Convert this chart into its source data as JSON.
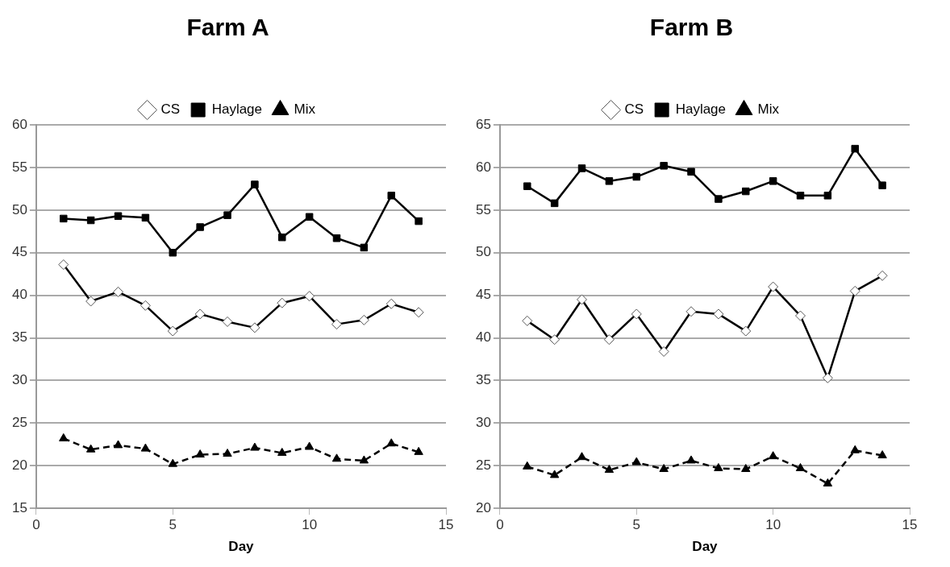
{
  "chart_data": [
    {
      "type": "line",
      "title": "Farm A",
      "xlabel": "Day",
      "x": [
        1,
        2,
        3,
        4,
        5,
        6,
        7,
        8,
        9,
        10,
        11,
        12,
        13,
        14
      ],
      "xlim": [
        0,
        15
      ],
      "xticks": [
        0,
        5,
        10,
        15
      ],
      "ylim": [
        15,
        60
      ],
      "yticks": [
        15,
        20,
        25,
        30,
        35,
        40,
        45,
        50,
        55,
        60
      ],
      "grid": "y",
      "legend": "top",
      "series": [
        {
          "name": "CS",
          "color": "#000000",
          "marker": "diamond",
          "line_style": "solid",
          "values": [
            43.6,
            39.3,
            40.4,
            38.8,
            35.8,
            37.8,
            36.9,
            36.2,
            39.1,
            39.9,
            36.6,
            37.1,
            39.0,
            38.0
          ]
        },
        {
          "name": "Haylage",
          "color": "#000000",
          "marker": "square",
          "line_style": "solid",
          "values": [
            49.0,
            48.8,
            49.3,
            49.1,
            45.0,
            48.0,
            49.4,
            53.0,
            46.8,
            49.2,
            46.7,
            45.6,
            51.7,
            48.7
          ]
        },
        {
          "name": "Mix",
          "color": "#000000",
          "marker": "triangle",
          "line_style": "dashed",
          "values": [
            23.2,
            21.9,
            22.4,
            22.0,
            20.2,
            21.3,
            21.4,
            22.1,
            21.5,
            22.2,
            20.8,
            20.6,
            22.6,
            21.6
          ]
        }
      ]
    },
    {
      "type": "line",
      "title": "Farm B",
      "xlabel": "Day",
      "x": [
        1,
        2,
        3,
        4,
        5,
        6,
        7,
        8,
        9,
        10,
        11,
        12,
        13,
        14
      ],
      "xlim": [
        0,
        15
      ],
      "xticks": [
        0,
        5,
        10,
        15
      ],
      "ylim": [
        20,
        65
      ],
      "yticks": [
        20,
        25,
        30,
        35,
        40,
        45,
        50,
        55,
        60,
        65
      ],
      "grid": "y",
      "legend": "top",
      "series": [
        {
          "name": "CS",
          "color": "#000000",
          "marker": "diamond",
          "line_style": "solid",
          "values": [
            42.0,
            39.8,
            44.5,
            39.8,
            42.8,
            38.4,
            43.1,
            42.8,
            40.8,
            46.0,
            42.6,
            35.3,
            45.5,
            47.3
          ]
        },
        {
          "name": "Haylage",
          "color": "#000000",
          "marker": "square",
          "line_style": "solid",
          "values": [
            57.8,
            55.8,
            59.9,
            58.4,
            58.9,
            60.2,
            59.5,
            56.3,
            57.2,
            58.4,
            56.7,
            56.7,
            62.2,
            57.9
          ]
        },
        {
          "name": "Mix",
          "color": "#000000",
          "marker": "triangle",
          "line_style": "dashed",
          "values": [
            24.9,
            23.9,
            26.0,
            24.5,
            25.4,
            24.6,
            25.6,
            24.7,
            24.6,
            26.1,
            24.7,
            22.9,
            26.8,
            26.2
          ]
        }
      ]
    }
  ]
}
